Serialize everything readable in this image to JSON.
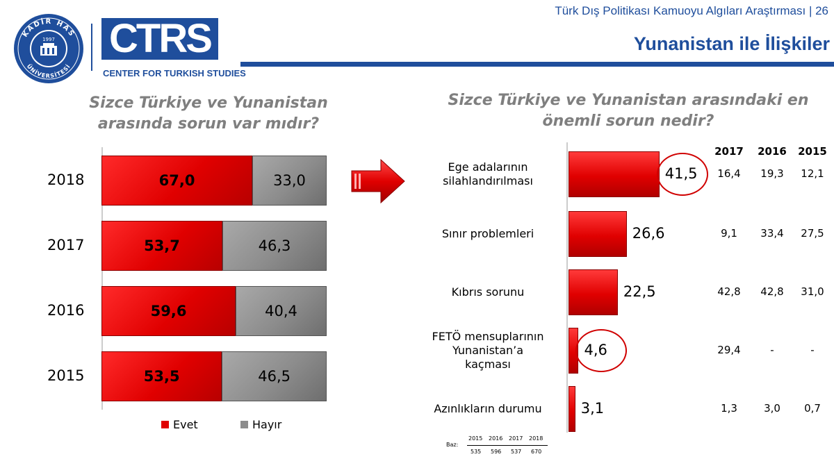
{
  "header": {
    "subtitle": "Türk Dış Politikası Kamuoyu Algıları Araştırması | 26",
    "title": "Yunanistan ile İlişkiler"
  },
  "logos": {
    "khas": "KADİR HAS ÜNİVERSİTESİ",
    "khas_year": "1997",
    "ctrs": "CTRS",
    "ctrs_sub": "CENTER FOR TURKISH STUDIES"
  },
  "colors": {
    "brand_blue": "#1f4e9c",
    "evet_red": "#e00000",
    "hayir_gray": "#8c8c8c",
    "highlight_circle": "#d00000"
  },
  "chart_data": [
    {
      "type": "bar",
      "orientation": "horizontal-stacked-100",
      "title": "Sizce Türkiye ve Yunanistan arasında sorun var mıdır?",
      "categories": [
        "2018",
        "2017",
        "2016",
        "2015"
      ],
      "series": [
        {
          "name": "Evet",
          "values": [
            67.0,
            53.7,
            59.6,
            53.5
          ],
          "labels": [
            "67,0",
            "53,7",
            "59,6",
            "53,5"
          ]
        },
        {
          "name": "Hayır",
          "values": [
            33.0,
            46.3,
            40.4,
            46.5
          ],
          "labels": [
            "33,0",
            "46,3",
            "40,4",
            "46,5"
          ]
        }
      ],
      "xlim": [
        0,
        100
      ],
      "legend": "bottom"
    },
    {
      "type": "bar",
      "orientation": "horizontal",
      "title": "Sizce Türkiye ve Yunanistan arasındaki en önemli sorun nedir?",
      "categories": [
        [
          "Ege adalarının",
          "silahlandırılması"
        ],
        [
          "Sınır problemleri"
        ],
        [
          "Kıbrıs sorunu"
        ],
        [
          "FETÖ mensuplarının",
          "Yunanistan’a",
          "kaçması"
        ],
        [
          "Azınlıkların durumu"
        ]
      ],
      "values": [
        41.5,
        26.6,
        22.5,
        4.6,
        3.1
      ],
      "labels": [
        "41,5",
        "26,6",
        "22,5",
        "4,6",
        "3,1"
      ],
      "highlighted": [
        true,
        false,
        false,
        true,
        false
      ],
      "comparison_table": {
        "columns": [
          "2017",
          "2016",
          "2015"
        ],
        "rows": [
          [
            "16,4",
            "19,3",
            "12,1"
          ],
          [
            "9,1",
            "33,4",
            "27,5"
          ],
          [
            "42,8",
            "42,8",
            "31,0"
          ],
          [
            "29,4",
            "-",
            "-"
          ],
          [
            "1,3",
            "3,0",
            "0,7"
          ]
        ]
      },
      "base": {
        "label": "Baz:",
        "years": [
          "2015",
          "2016",
          "2017",
          "2018"
        ],
        "counts": [
          "535",
          "596",
          "537",
          "670"
        ]
      }
    }
  ]
}
